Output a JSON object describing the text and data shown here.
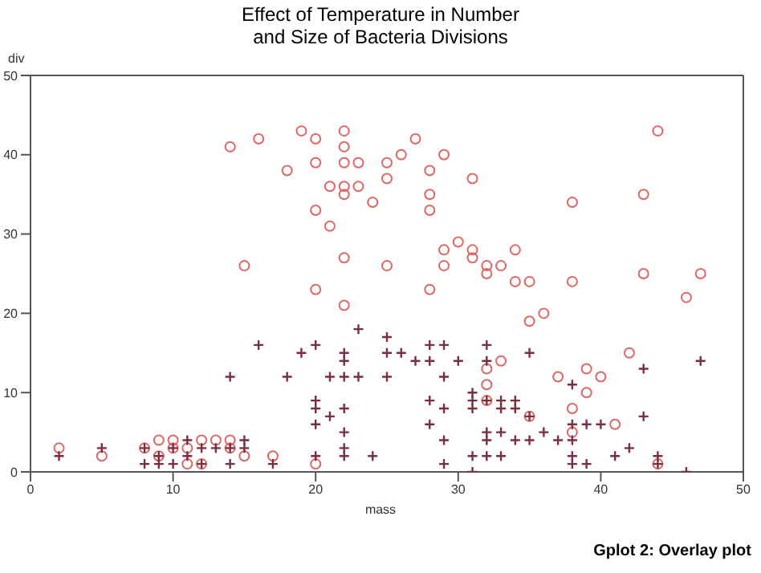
{
  "chart_data": {
    "type": "scatter",
    "title": "Effect of Temperature in Number\nand Size of Bacteria Divisions",
    "xlabel": "mass",
    "ylabel": "div",
    "xlim": [
      0,
      50
    ],
    "xticks": [
      0,
      10,
      20,
      30,
      40,
      50
    ],
    "ylim": [
      0,
      50
    ],
    "yticks": [
      0,
      10,
      20,
      30,
      40,
      50
    ],
    "annotations": [
      "Gplot 2: Overlay plot"
    ],
    "series": [
      {
        "color": "#e06666",
        "marker": "circle",
        "x": [
          14,
          16,
          19,
          20,
          22,
          22,
          20,
          22,
          23,
          18,
          21,
          22,
          23,
          22,
          24,
          20,
          21,
          22,
          15,
          20,
          22,
          27,
          25,
          26,
          29,
          25,
          28,
          31,
          28,
          28,
          38,
          43,
          44,
          30,
          29,
          31,
          34,
          31,
          25,
          29,
          32,
          33,
          32,
          34,
          35,
          38,
          43,
          47,
          28,
          46,
          35,
          36,
          42,
          33,
          32,
          39,
          37,
          40,
          32,
          39,
          38,
          38,
          41,
          32,
          35,
          44,
          2,
          5,
          8,
          9,
          10,
          11,
          12,
          13,
          14,
          15,
          11,
          12,
          17,
          20,
          9,
          10,
          14
        ],
        "values": [
          41,
          42,
          43,
          42,
          43,
          41,
          39,
          39,
          39,
          38,
          36,
          36,
          36,
          35,
          34,
          33,
          31,
          27,
          26,
          23,
          21,
          42,
          39,
          40,
          40,
          37,
          38,
          37,
          35,
          33,
          34,
          35,
          43,
          29,
          28,
          28,
          28,
          27,
          26,
          26,
          26,
          26,
          25,
          24,
          24,
          24,
          25,
          25,
          23,
          22,
          19,
          20,
          15,
          14,
          13,
          13,
          12,
          12,
          11,
          10,
          8,
          5,
          6,
          9,
          7,
          1,
          3,
          2,
          3,
          4,
          4,
          3,
          4,
          4,
          4,
          2,
          1,
          1,
          2,
          1,
          2,
          3,
          3
        ]
      },
      {
        "color": "#7a2e3e",
        "marker": "cross",
        "x": [
          2,
          5,
          8,
          8,
          9,
          9,
          10,
          10,
          11,
          11,
          12,
          12,
          13,
          14,
          14,
          15,
          15,
          14,
          16,
          18,
          19,
          20,
          20,
          20,
          20,
          20,
          21,
          21,
          22,
          22,
          22,
          22,
          22,
          22,
          22,
          23,
          23,
          24,
          17,
          25,
          25,
          25,
          26,
          27,
          28,
          28,
          29,
          30,
          32,
          32,
          35,
          29,
          28,
          29,
          28,
          29,
          29,
          31,
          31,
          31,
          32,
          33,
          34,
          33,
          34,
          32,
          33,
          32,
          34,
          35,
          35,
          36,
          37,
          38,
          38,
          39,
          40,
          38,
          31,
          32,
          33,
          31,
          38,
          38,
          39,
          41,
          42,
          43,
          43,
          44,
          44,
          46,
          47
        ],
        "values": [
          2,
          3,
          3,
          1,
          2,
          1,
          3,
          1,
          4,
          2,
          3,
          1,
          3,
          3,
          1,
          4,
          3,
          12,
          16,
          12,
          15,
          16,
          9,
          8,
          6,
          2,
          7,
          12,
          15,
          14,
          12,
          8,
          5,
          3,
          2,
          18,
          12,
          2,
          1,
          17,
          15,
          12,
          15,
          14,
          16,
          14,
          16,
          14,
          16,
          14,
          15,
          12,
          9,
          8,
          6,
          4,
          1,
          10,
          9,
          8,
          9,
          9,
          9,
          8,
          8,
          5,
          5,
          4,
          4,
          4,
          7,
          5,
          4,
          11,
          6,
          6,
          6,
          4,
          2,
          2,
          2,
          0,
          2,
          1,
          1,
          2,
          3,
          13,
          7,
          2,
          1,
          0,
          14
        ]
      }
    ]
  }
}
